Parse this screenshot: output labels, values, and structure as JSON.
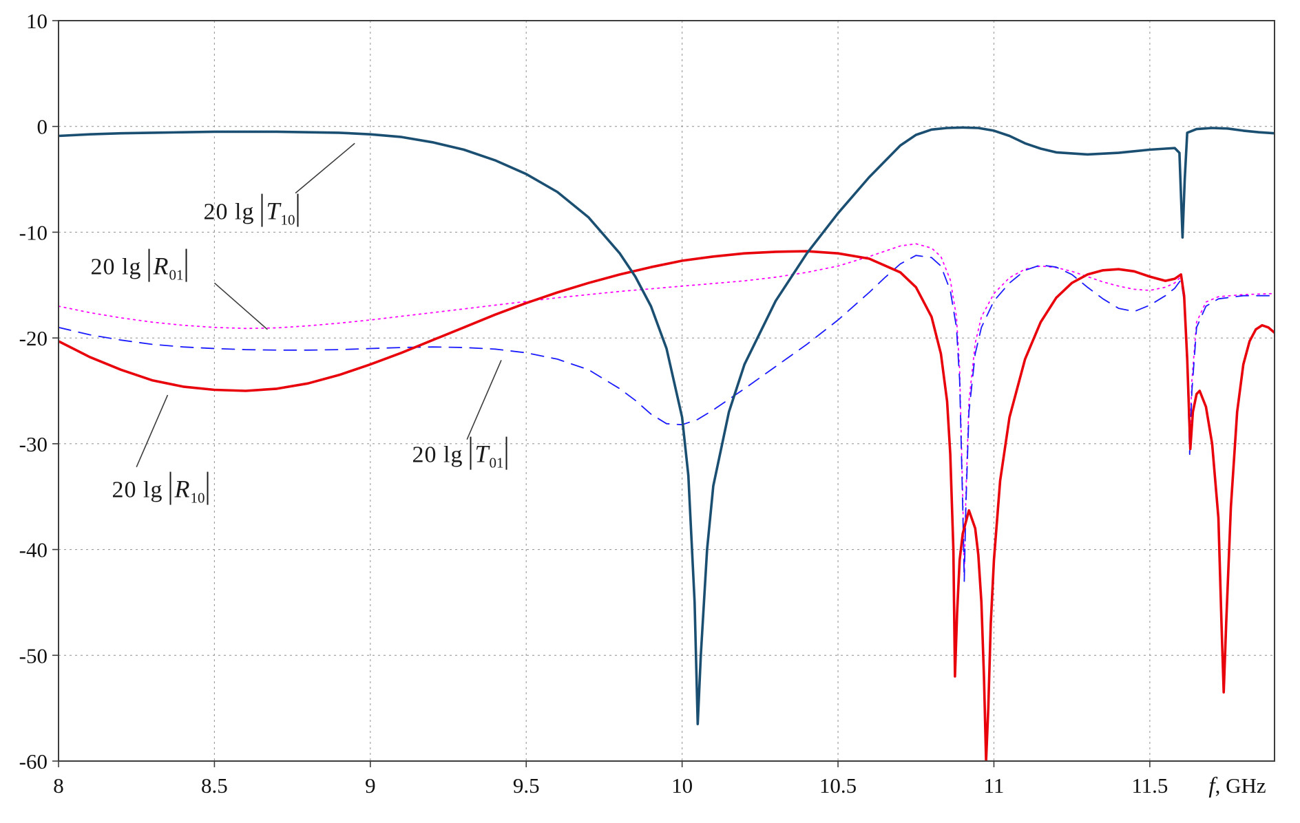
{
  "chart_data": {
    "type": "line",
    "title": "",
    "xlabel": "f, GHz",
    "xlabel_parts": {
      "variable": "f",
      "unit": ", GHz"
    },
    "ylabel": "",
    "xlim": [
      8,
      11.9
    ],
    "ylim": [
      -60,
      10
    ],
    "xticks": [
      8,
      8.5,
      9,
      9.5,
      10,
      10.5,
      11,
      11.5
    ],
    "yticks": [
      10,
      0,
      -10,
      -20,
      -30,
      -40,
      -50,
      -60
    ],
    "grid": true,
    "grid_color": "#9a9a9a",
    "axis_color": "#3c3c3c",
    "series": [
      {
        "id": "R01",
        "name": "20 lg |R01|",
        "color": "#ff00ff",
        "line_style": "dotted",
        "line_width": 1.8,
        "points": [
          [
            8.0,
            -17.0
          ],
          [
            8.1,
            -17.6
          ],
          [
            8.2,
            -18.1
          ],
          [
            8.3,
            -18.5
          ],
          [
            8.4,
            -18.8
          ],
          [
            8.5,
            -19.0
          ],
          [
            8.6,
            -19.1
          ],
          [
            8.7,
            -19.05
          ],
          [
            8.8,
            -18.85
          ],
          [
            8.9,
            -18.6
          ],
          [
            9.0,
            -18.3
          ],
          [
            9.1,
            -17.95
          ],
          [
            9.2,
            -17.6
          ],
          [
            9.3,
            -17.25
          ],
          [
            9.4,
            -16.9
          ],
          [
            9.5,
            -16.55
          ],
          [
            9.6,
            -16.2
          ],
          [
            9.7,
            -15.9
          ],
          [
            9.8,
            -15.6
          ],
          [
            9.9,
            -15.35
          ],
          [
            10.0,
            -15.1
          ],
          [
            10.1,
            -14.85
          ],
          [
            10.2,
            -14.6
          ],
          [
            10.3,
            -14.25
          ],
          [
            10.4,
            -13.8
          ],
          [
            10.5,
            -13.2
          ],
          [
            10.6,
            -12.3
          ],
          [
            10.65,
            -11.8
          ],
          [
            10.7,
            -11.3
          ],
          [
            10.75,
            -11.1
          ],
          [
            10.8,
            -11.5
          ],
          [
            10.83,
            -12.3
          ],
          [
            10.86,
            -14.5
          ],
          [
            10.88,
            -18.0
          ],
          [
            10.89,
            -23.0
          ],
          [
            10.9,
            -35.0
          ],
          [
            10.905,
            -42.5
          ],
          [
            10.91,
            -35.0
          ],
          [
            10.92,
            -26.0
          ],
          [
            10.94,
            -20.5
          ],
          [
            10.96,
            -18.0
          ],
          [
            11.0,
            -15.8
          ],
          [
            11.05,
            -14.3
          ],
          [
            11.1,
            -13.5
          ],
          [
            11.15,
            -13.2
          ],
          [
            11.2,
            -13.35
          ],
          [
            11.25,
            -13.7
          ],
          [
            11.3,
            -14.2
          ],
          [
            11.35,
            -14.7
          ],
          [
            11.4,
            -15.1
          ],
          [
            11.45,
            -15.4
          ],
          [
            11.5,
            -15.5
          ],
          [
            11.55,
            -15.2
          ],
          [
            11.58,
            -14.8
          ],
          [
            11.6,
            -14.2
          ],
          [
            11.61,
            -16.0
          ],
          [
            11.62,
            -22.0
          ],
          [
            11.628,
            -30.0
          ],
          [
            11.635,
            -24.0
          ],
          [
            11.65,
            -18.5
          ],
          [
            11.68,
            -16.6
          ],
          [
            11.72,
            -16.1
          ],
          [
            11.8,
            -15.9
          ],
          [
            11.9,
            -15.8
          ]
        ]
      },
      {
        "id": "T01",
        "name": "20 lg |T01|",
        "color": "#1a1aff",
        "line_style": "dashed",
        "line_width": 1.8,
        "points": [
          [
            8.0,
            -19.0
          ],
          [
            8.1,
            -19.7
          ],
          [
            8.2,
            -20.2
          ],
          [
            8.3,
            -20.6
          ],
          [
            8.4,
            -20.85
          ],
          [
            8.5,
            -21.0
          ],
          [
            8.6,
            -21.1
          ],
          [
            8.7,
            -21.15
          ],
          [
            8.8,
            -21.15
          ],
          [
            8.9,
            -21.1
          ],
          [
            9.0,
            -21.0
          ],
          [
            9.1,
            -20.9
          ],
          [
            9.2,
            -20.85
          ],
          [
            9.3,
            -20.9
          ],
          [
            9.4,
            -21.05
          ],
          [
            9.5,
            -21.4
          ],
          [
            9.6,
            -22.0
          ],
          [
            9.7,
            -23.0
          ],
          [
            9.8,
            -24.8
          ],
          [
            9.85,
            -25.9
          ],
          [
            9.9,
            -27.2
          ],
          [
            9.95,
            -28.1
          ],
          [
            10.0,
            -28.2
          ],
          [
            10.05,
            -27.7
          ],
          [
            10.1,
            -26.8
          ],
          [
            10.2,
            -24.8
          ],
          [
            10.3,
            -22.7
          ],
          [
            10.4,
            -20.6
          ],
          [
            10.5,
            -18.3
          ],
          [
            10.6,
            -15.7
          ],
          [
            10.65,
            -14.3
          ],
          [
            10.7,
            -13.0
          ],
          [
            10.75,
            -12.2
          ],
          [
            10.8,
            -12.4
          ],
          [
            10.83,
            -13.2
          ],
          [
            10.86,
            -15.5
          ],
          [
            10.88,
            -19.0
          ],
          [
            10.89,
            -24.0
          ],
          [
            10.9,
            -36.0
          ],
          [
            10.905,
            -43.0
          ],
          [
            10.91,
            -36.0
          ],
          [
            10.92,
            -27.0
          ],
          [
            10.94,
            -21.5
          ],
          [
            10.96,
            -19.0
          ],
          [
            11.0,
            -16.5
          ],
          [
            11.05,
            -14.8
          ],
          [
            11.1,
            -13.6
          ],
          [
            11.15,
            -13.1
          ],
          [
            11.2,
            -13.3
          ],
          [
            11.25,
            -14.0
          ],
          [
            11.3,
            -15.2
          ],
          [
            11.35,
            -16.3
          ],
          [
            11.4,
            -17.2
          ],
          [
            11.45,
            -17.5
          ],
          [
            11.5,
            -16.9
          ],
          [
            11.55,
            -16.0
          ],
          [
            11.58,
            -15.3
          ],
          [
            11.6,
            -14.5
          ],
          [
            11.61,
            -16.5
          ],
          [
            11.62,
            -23.0
          ],
          [
            11.628,
            -31.0
          ],
          [
            11.635,
            -25.0
          ],
          [
            11.65,
            -19.0
          ],
          [
            11.68,
            -17.0
          ],
          [
            11.72,
            -16.3
          ],
          [
            11.8,
            -16.0
          ],
          [
            11.9,
            -16.0
          ]
        ]
      },
      {
        "id": "R10",
        "name": "20 lg |R10|",
        "color": "#e8000b",
        "line_style": "solid",
        "line_width": 3.6,
        "points": [
          [
            8.0,
            -20.3
          ],
          [
            8.1,
            -21.8
          ],
          [
            8.2,
            -23.0
          ],
          [
            8.3,
            -24.0
          ],
          [
            8.4,
            -24.6
          ],
          [
            8.5,
            -24.9
          ],
          [
            8.6,
            -25.0
          ],
          [
            8.7,
            -24.8
          ],
          [
            8.8,
            -24.3
          ],
          [
            8.9,
            -23.5
          ],
          [
            9.0,
            -22.5
          ],
          [
            9.1,
            -21.4
          ],
          [
            9.2,
            -20.2
          ],
          [
            9.3,
            -19.0
          ],
          [
            9.4,
            -17.8
          ],
          [
            9.5,
            -16.7
          ],
          [
            9.6,
            -15.7
          ],
          [
            9.7,
            -14.8
          ],
          [
            9.8,
            -14.0
          ],
          [
            9.9,
            -13.3
          ],
          [
            10.0,
            -12.7
          ],
          [
            10.1,
            -12.3
          ],
          [
            10.2,
            -12.0
          ],
          [
            10.3,
            -11.85
          ],
          [
            10.4,
            -11.8
          ],
          [
            10.5,
            -12.0
          ],
          [
            10.6,
            -12.5
          ],
          [
            10.7,
            -13.8
          ],
          [
            10.75,
            -15.2
          ],
          [
            10.8,
            -18.0
          ],
          [
            10.83,
            -21.5
          ],
          [
            10.85,
            -26.0
          ],
          [
            10.86,
            -31.0
          ],
          [
            10.87,
            -40.0
          ],
          [
            10.875,
            -52.0
          ],
          [
            10.882,
            -46.0
          ],
          [
            10.89,
            -41.0
          ],
          [
            10.9,
            -38.5
          ],
          [
            10.92,
            -36.3
          ],
          [
            10.94,
            -38.0
          ],
          [
            10.95,
            -40.5
          ],
          [
            10.96,
            -45.0
          ],
          [
            10.968,
            -52.0
          ],
          [
            10.975,
            -60.0
          ],
          [
            10.982,
            -55.0
          ],
          [
            10.99,
            -47.0
          ],
          [
            11.0,
            -41.0
          ],
          [
            11.02,
            -33.5
          ],
          [
            11.05,
            -27.5
          ],
          [
            11.1,
            -22.0
          ],
          [
            11.15,
            -18.5
          ],
          [
            11.2,
            -16.2
          ],
          [
            11.25,
            -14.8
          ],
          [
            11.3,
            -14.0
          ],
          [
            11.35,
            -13.6
          ],
          [
            11.4,
            -13.5
          ],
          [
            11.45,
            -13.7
          ],
          [
            11.5,
            -14.2
          ],
          [
            11.55,
            -14.6
          ],
          [
            11.58,
            -14.4
          ],
          [
            11.6,
            -14.0
          ],
          [
            11.61,
            -16.0
          ],
          [
            11.62,
            -22.0
          ],
          [
            11.63,
            -30.5
          ],
          [
            11.638,
            -27.0
          ],
          [
            11.65,
            -25.3
          ],
          [
            11.66,
            -25.0
          ],
          [
            11.68,
            -26.5
          ],
          [
            11.7,
            -30.0
          ],
          [
            11.72,
            -37.0
          ],
          [
            11.73,
            -47.0
          ],
          [
            11.737,
            -53.5
          ],
          [
            11.745,
            -47.0
          ],
          [
            11.76,
            -36.0
          ],
          [
            11.78,
            -27.0
          ],
          [
            11.8,
            -22.5
          ],
          [
            11.82,
            -20.3
          ],
          [
            11.84,
            -19.2
          ],
          [
            11.86,
            -18.8
          ],
          [
            11.88,
            -19.0
          ],
          [
            11.9,
            -19.5
          ]
        ]
      },
      {
        "id": "T10",
        "name": "20 lg |T10|",
        "color": "#1b4f72",
        "line_style": "solid",
        "line_width": 3.6,
        "points": [
          [
            8.0,
            -0.9
          ],
          [
            8.1,
            -0.75
          ],
          [
            8.2,
            -0.65
          ],
          [
            8.3,
            -0.6
          ],
          [
            8.4,
            -0.55
          ],
          [
            8.5,
            -0.5
          ],
          [
            8.6,
            -0.5
          ],
          [
            8.7,
            -0.5
          ],
          [
            8.8,
            -0.55
          ],
          [
            8.9,
            -0.6
          ],
          [
            9.0,
            -0.75
          ],
          [
            9.1,
            -1.0
          ],
          [
            9.2,
            -1.5
          ],
          [
            9.3,
            -2.2
          ],
          [
            9.4,
            -3.2
          ],
          [
            9.5,
            -4.5
          ],
          [
            9.6,
            -6.2
          ],
          [
            9.7,
            -8.6
          ],
          [
            9.8,
            -12.0
          ],
          [
            9.85,
            -14.2
          ],
          [
            9.9,
            -17.0
          ],
          [
            9.95,
            -21.0
          ],
          [
            10.0,
            -27.5
          ],
          [
            10.02,
            -33.0
          ],
          [
            10.04,
            -45.0
          ],
          [
            10.05,
            -56.5
          ],
          [
            10.06,
            -50.0
          ],
          [
            10.08,
            -40.0
          ],
          [
            10.1,
            -34.0
          ],
          [
            10.15,
            -27.0
          ],
          [
            10.2,
            -22.5
          ],
          [
            10.3,
            -16.5
          ],
          [
            10.4,
            -12.0
          ],
          [
            10.5,
            -8.2
          ],
          [
            10.6,
            -4.8
          ],
          [
            10.7,
            -1.8
          ],
          [
            10.75,
            -0.8
          ],
          [
            10.8,
            -0.3
          ],
          [
            10.85,
            -0.15
          ],
          [
            10.9,
            -0.1
          ],
          [
            10.95,
            -0.15
          ],
          [
            11.0,
            -0.4
          ],
          [
            11.05,
            -0.9
          ],
          [
            11.1,
            -1.6
          ],
          [
            11.15,
            -2.1
          ],
          [
            11.2,
            -2.45
          ],
          [
            11.3,
            -2.65
          ],
          [
            11.4,
            -2.5
          ],
          [
            11.5,
            -2.2
          ],
          [
            11.55,
            -2.1
          ],
          [
            11.58,
            -2.05
          ],
          [
            11.595,
            -2.5
          ],
          [
            11.605,
            -10.5
          ],
          [
            11.612,
            -5.0
          ],
          [
            11.62,
            -0.6
          ],
          [
            11.65,
            -0.25
          ],
          [
            11.7,
            -0.15
          ],
          [
            11.75,
            -0.2
          ],
          [
            11.8,
            -0.4
          ],
          [
            11.85,
            -0.55
          ],
          [
            11.9,
            -0.65
          ]
        ]
      }
    ],
    "annotations": [
      {
        "id": "T10",
        "prefix": "20 lg",
        "variable": "T",
        "sub": "10",
        "label_f": 8.62,
        "label_db": -8.0,
        "leader": [
          [
            8.76,
            -6.3
          ],
          [
            8.95,
            -1.6
          ]
        ]
      },
      {
        "id": "R01",
        "prefix": "20 lg",
        "variable": "R",
        "sub": "01",
        "label_f": 8.26,
        "label_db": -13.2,
        "leader": [
          [
            8.5,
            -14.8
          ],
          [
            8.67,
            -19.2
          ]
        ]
      },
      {
        "id": "R10",
        "prefix": "20 lg",
        "variable": "R",
        "sub": "10",
        "label_f": 8.33,
        "label_db": -34.3,
        "leader": [
          [
            8.25,
            -32.2
          ],
          [
            8.35,
            -25.4
          ]
        ]
      },
      {
        "id": "T01",
        "prefix": "20 lg",
        "variable": "T",
        "sub": "01",
        "label_f": 9.29,
        "label_db": -31.0,
        "leader": [
          [
            9.31,
            -29.6
          ],
          [
            9.42,
            -22.1
          ]
        ]
      }
    ]
  }
}
